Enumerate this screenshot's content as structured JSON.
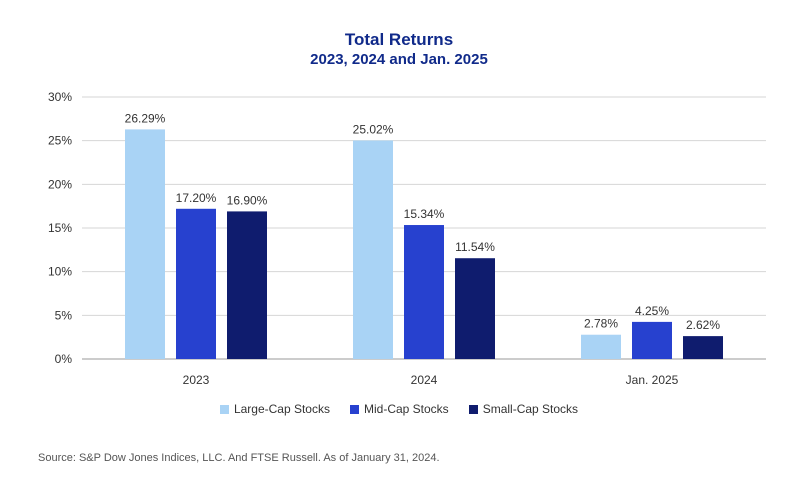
{
  "chart_data": {
    "type": "bar",
    "title": "Total Returns",
    "subtitle": "2023, 2024 and Jan. 2025",
    "categories": [
      "2023",
      "2024",
      "Jan. 2025"
    ],
    "series": [
      {
        "name": "Large-Cap Stocks",
        "color": "#a9d3f5",
        "values": [
          26.29,
          25.02,
          2.78
        ],
        "labels": [
          "26.29%",
          "25.02%",
          "2.78%"
        ]
      },
      {
        "name": "Mid-Cap Stocks",
        "color": "#2741cf",
        "values": [
          17.2,
          15.34,
          4.25
        ],
        "labels": [
          "17.20%",
          "15.34%",
          "4.25%"
        ]
      },
      {
        "name": "Small-Cap Stocks",
        "color": "#0f1c6e",
        "values": [
          16.9,
          11.54,
          2.62
        ],
        "labels": [
          "16.90%",
          "11.54%",
          "2.62%"
        ]
      }
    ],
    "ylim": [
      0,
      30
    ],
    "yticks": [
      0,
      5,
      10,
      15,
      20,
      25,
      30
    ],
    "ytick_labels": [
      "0%",
      "5%",
      "10%",
      "15%",
      "20%",
      "25%",
      "30%"
    ],
    "grid": true,
    "legend_position": "bottom"
  },
  "source_note": "Source: S&P Dow Jones Indices, LLC. And FTSE Russell. As of January 31, 2024."
}
